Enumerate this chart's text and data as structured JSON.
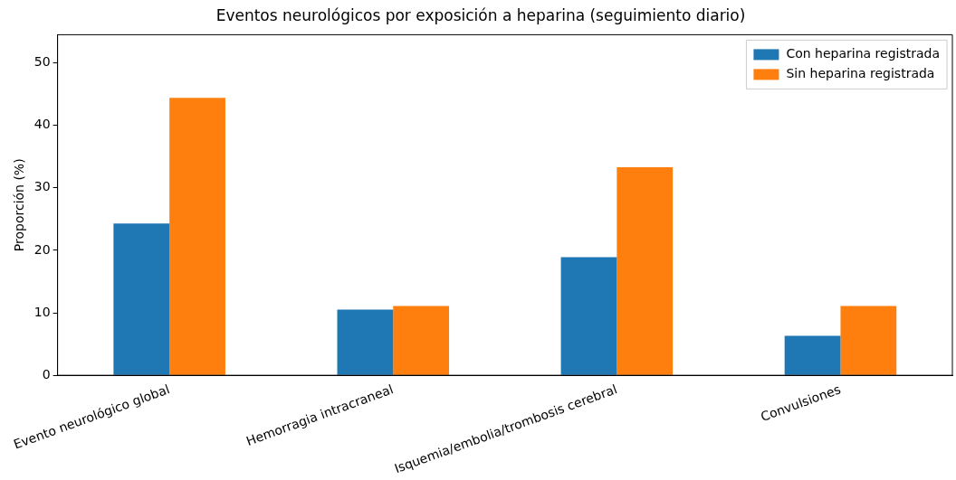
{
  "chart_data": {
    "type": "bar",
    "title": "Eventos neurológicos por exposición a heparina (seguimiento diario)",
    "ylabel": "Proporción (%)",
    "categories": [
      "Evento neurológico global",
      "Hemorragia intracraneal",
      "Isquemia/embolia/trombosis cerebral",
      "Convulsiones"
    ],
    "series": [
      {
        "name": "Con heparina registrada",
        "color": "#1f77b4",
        "values": [
          24.3,
          10.5,
          18.9,
          6.3
        ]
      },
      {
        "name": "Sin heparina registrada",
        "color": "#ff7f0e",
        "values": [
          44.4,
          11.1,
          33.3,
          11.1
        ]
      }
    ],
    "ylim": [
      0,
      54.5
    ],
    "yticks": [
      0,
      10,
      20,
      30,
      40,
      50
    ],
    "grid": false,
    "legend": "top right"
  }
}
